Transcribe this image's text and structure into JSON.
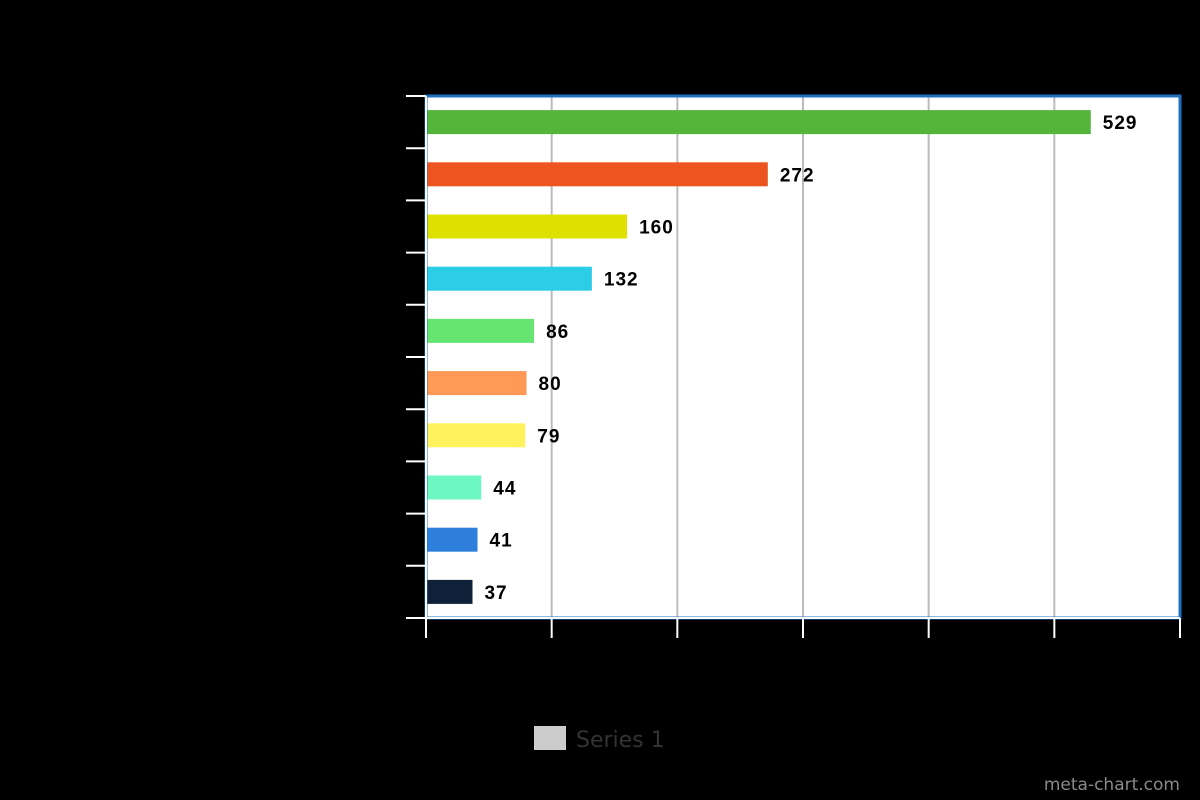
{
  "chart_data": {
    "type": "bar",
    "orientation": "horizontal",
    "title": "",
    "xlabel": "",
    "ylabel": "",
    "values": [
      529,
      272,
      160,
      132,
      86,
      80,
      79,
      44,
      41,
      37
    ],
    "bar_colors": [
      "#53b63a",
      "#ec5520",
      "#dfe000",
      "#2ccde6",
      "#66e572",
      "#ff9955",
      "#fff25c",
      "#6cf8c0",
      "#2d7fdb",
      "#0e2139"
    ],
    "series": [
      {
        "name": "Series 1",
        "values": [
          529,
          272,
          160,
          132,
          86,
          80,
          79,
          44,
          41,
          37
        ]
      }
    ],
    "xlim": [
      0,
      600
    ],
    "x_gridline_step": 100,
    "grid": true,
    "legend": {
      "position": "bottom",
      "label": "Series 1",
      "swatch_color": "#cccccc"
    },
    "colors": {
      "background": "#000000",
      "plot_background": "#ffffff",
      "plot_border": "#1f6fbf",
      "gridline": "#bbbbbb"
    }
  },
  "watermark": "meta-chart.com"
}
